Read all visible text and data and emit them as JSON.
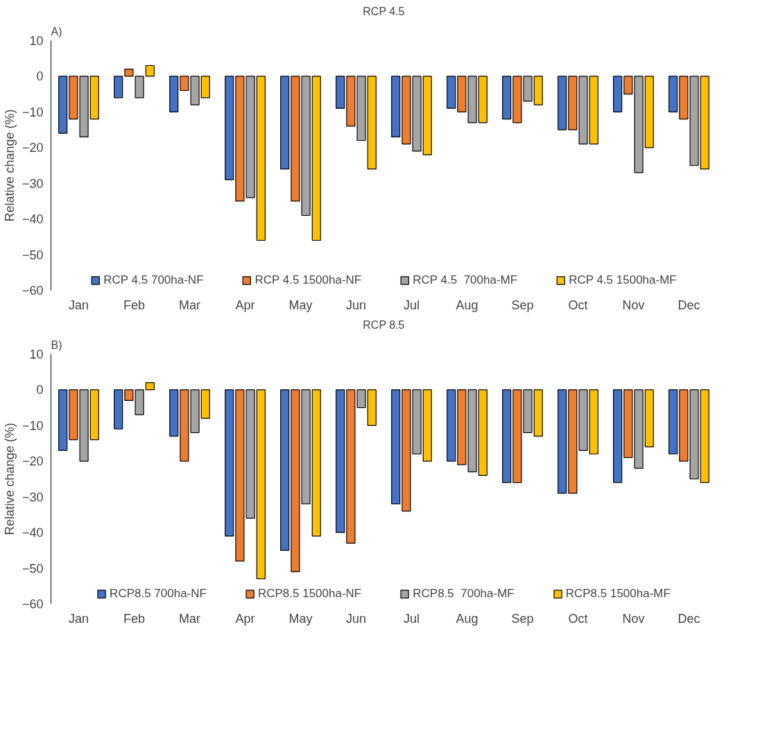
{
  "chart_data": [
    {
      "type": "bar",
      "title": "RCP 4.5",
      "ylabel": "Relative change (%)",
      "annotations": [
        "A)"
      ],
      "categories": [
        "Jan",
        "Feb",
        "Mar",
        "Apr",
        "May",
        "Jun",
        "Jul",
        "Aug",
        "Sep",
        "Oct",
        "Nov",
        "Dec"
      ],
      "ylim": [
        -60,
        10
      ],
      "yticks": [
        -60,
        -50,
        -40,
        -30,
        -20,
        -10,
        0,
        10
      ],
      "grid": false,
      "legend": "bottom",
      "series": [
        {
          "name": "RCP 4.5 700ha-NF",
          "color": "#4472c4",
          "values": [
            -16,
            -6,
            -10,
            -29,
            -26,
            -9,
            -17,
            -9,
            -12,
            -15,
            -10,
            -10
          ]
        },
        {
          "name": "RCP 4.5 1500ha-NF",
          "color": "#ed7d31",
          "values": [
            -12,
            2,
            -4,
            -35,
            -35,
            -14,
            -19,
            -10,
            -13,
            -15,
            -5,
            -12
          ]
        },
        {
          "name": "RCP 4.5  700ha-MF",
          "color": "#a5a5a5",
          "values": [
            -17,
            -6,
            -8,
            -34,
            -39,
            -18,
            -21,
            -13,
            -7,
            -19,
            -27,
            -25
          ]
        },
        {
          "name": "RCP 4.5 1500ha-MF",
          "color": "#ffc000",
          "values": [
            -12,
            3,
            -6,
            -46,
            -46,
            -26,
            -22,
            -13,
            -8,
            -19,
            -20,
            -26
          ]
        }
      ]
    },
    {
      "type": "bar",
      "title": "RCP 8.5",
      "ylabel": "Relative change (%)",
      "annotations": [
        "B)"
      ],
      "categories": [
        "Jan",
        "Feb",
        "Mar",
        "Apr",
        "May",
        "Jun",
        "Jul",
        "Aug",
        "Sep",
        "Oct",
        "Nov",
        "Dec"
      ],
      "ylim": [
        -60,
        10
      ],
      "yticks": [
        -60,
        -50,
        -40,
        -30,
        -20,
        -10,
        0,
        10
      ],
      "grid": false,
      "legend": "bottom",
      "series": [
        {
          "name": "RCP8.5 700ha-NF",
          "color": "#4472c4",
          "values": [
            -17,
            -11,
            -13,
            -41,
            -45,
            -40,
            -32,
            -20,
            -26,
            -29,
            -26,
            -18
          ]
        },
        {
          "name": "RCP8.5 1500ha-NF",
          "color": "#ed7d31",
          "values": [
            -14,
            -3,
            -20,
            -48,
            -51,
            -43,
            -34,
            -21,
            -26,
            -29,
            -19,
            -20
          ]
        },
        {
          "name": "RCP8.5  700ha-MF",
          "color": "#a5a5a5",
          "values": [
            -20,
            -7,
            -12,
            -36,
            -32,
            -5,
            -18,
            -23,
            -12,
            -17,
            -22,
            -25
          ]
        },
        {
          "name": "RCP8.5 1500ha-MF",
          "color": "#ffc000",
          "values": [
            -14,
            2,
            -8,
            -53,
            -41,
            -10,
            -20,
            -24,
            -13,
            -18,
            -16,
            -26
          ]
        }
      ]
    }
  ]
}
